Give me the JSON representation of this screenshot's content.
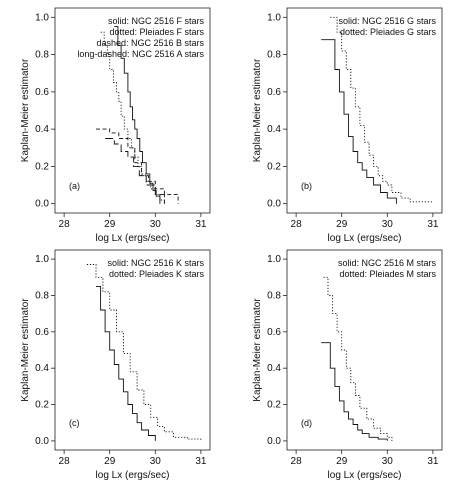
{
  "chart_data": [
    {
      "type": "line",
      "panel_label": "(a)",
      "xlabel": "log Lx (ergs/sec)",
      "ylabel": "Kaplan-Meier estimator",
      "xlim": [
        27.8,
        31.2
      ],
      "ylim": [
        -0.05,
        1.05
      ],
      "xticks": [
        "28",
        "29",
        "30",
        "31"
      ],
      "yticks": [
        "0.0",
        "0.2",
        "0.4",
        "0.6",
        "0.8",
        "1.0"
      ],
      "legend": [
        "solid: NGC 2516 F stars",
        "dotted: Pleiades F stars",
        "dashed: NGC 2516 B stars",
        "long-dashed: NGC 2516 A stars"
      ],
      "legend_position": "top-right",
      "grid": false,
      "series": [
        {
          "name": "NGC 2516 F stars",
          "style": "solid",
          "x": [
            29.1,
            29.18,
            29.25,
            29.32,
            29.4,
            29.45,
            29.5,
            29.55,
            29.6,
            29.66,
            29.72,
            29.8,
            29.88,
            29.95,
            30.02,
            30.1
          ],
          "y": [
            0.95,
            0.85,
            0.78,
            0.7,
            0.6,
            0.52,
            0.45,
            0.4,
            0.35,
            0.28,
            0.22,
            0.16,
            0.11,
            0.07,
            0.04,
            0.0
          ]
        },
        {
          "name": "Pleiades F stars",
          "style": "dotted",
          "x": [
            28.8,
            28.88,
            28.95,
            29.0,
            29.08,
            29.15,
            29.2,
            29.25,
            29.32,
            29.4,
            29.48,
            29.55,
            29.62,
            29.7,
            29.8,
            29.9,
            30.0,
            30.1,
            30.2
          ],
          "y": [
            0.92,
            0.85,
            0.8,
            0.72,
            0.65,
            0.6,
            0.55,
            0.47,
            0.4,
            0.35,
            0.3,
            0.25,
            0.2,
            0.16,
            0.12,
            0.08,
            0.05,
            0.02,
            0.0
          ]
        },
        {
          "name": "NGC 2516 B stars",
          "style": "dashed",
          "x": [
            28.7,
            29.0,
            29.2,
            29.4,
            29.55,
            29.7,
            29.85,
            30.0,
            30.2,
            30.5
          ],
          "y": [
            0.4,
            0.38,
            0.35,
            0.3,
            0.22,
            0.15,
            0.12,
            0.08,
            0.05,
            0.0
          ]
        },
        {
          "name": "NGC 2516 A stars",
          "style": "long-dashed",
          "x": [
            28.9,
            29.1,
            29.25,
            29.4,
            29.52,
            29.65,
            29.8,
            30.0,
            30.2
          ],
          "y": [
            0.35,
            0.32,
            0.28,
            0.25,
            0.2,
            0.15,
            0.1,
            0.05,
            0.0
          ]
        }
      ]
    },
    {
      "type": "line",
      "panel_label": "(b)",
      "xlabel": "log Lx (ergs/sec)",
      "ylabel": "Kaplan-Meier estimator",
      "xlim": [
        27.8,
        31.2
      ],
      "ylim": [
        -0.05,
        1.05
      ],
      "xticks": [
        "28",
        "29",
        "30",
        "31"
      ],
      "yticks": [
        "0.0",
        "0.2",
        "0.4",
        "0.6",
        "0.8",
        "1.0"
      ],
      "legend": [
        "solid: NGC 2516 G stars",
        "dotted: Pleiades G stars"
      ],
      "legend_position": "top-right",
      "grid": false,
      "series": [
        {
          "name": "NGC 2516 G stars",
          "style": "solid",
          "x": [
            28.55,
            28.85,
            28.95,
            29.05,
            29.15,
            29.25,
            29.35,
            29.45,
            29.55,
            29.7,
            29.85,
            30.0,
            30.2
          ],
          "y": [
            0.88,
            0.72,
            0.6,
            0.48,
            0.36,
            0.28,
            0.22,
            0.18,
            0.14,
            0.1,
            0.06,
            0.03,
            0.0
          ]
        },
        {
          "name": "Pleiades G stars",
          "style": "dotted",
          "x": [
            28.75,
            28.9,
            29.0,
            29.1,
            29.2,
            29.3,
            29.4,
            29.5,
            29.6,
            29.7,
            29.8,
            29.9,
            30.0,
            30.1,
            30.3,
            30.5,
            31.0
          ],
          "y": [
            1.0,
            0.92,
            0.82,
            0.72,
            0.62,
            0.52,
            0.42,
            0.33,
            0.26,
            0.2,
            0.15,
            0.12,
            0.1,
            0.06,
            0.03,
            0.01,
            0.01
          ]
        }
      ]
    },
    {
      "type": "line",
      "panel_label": "(c)",
      "xlabel": "log Lx (ergs/sec)",
      "ylabel": "Kaplan-Meier estimator",
      "xlim": [
        27.8,
        31.2
      ],
      "ylim": [
        -0.05,
        1.05
      ],
      "xticks": [
        "28",
        "29",
        "30",
        "31"
      ],
      "yticks": [
        "0.0",
        "0.2",
        "0.4",
        "0.6",
        "0.8",
        "1.0"
      ],
      "legend": [
        "solid: NGC 2516 K stars",
        "dotted: Pleiades K stars"
      ],
      "legend_position": "top-right",
      "grid": false,
      "series": [
        {
          "name": "NGC 2516 K stars",
          "style": "solid",
          "x": [
            28.7,
            28.8,
            28.9,
            29.0,
            29.1,
            29.2,
            29.3,
            29.4,
            29.5,
            29.6,
            29.7,
            29.85,
            30.0
          ],
          "y": [
            0.85,
            0.72,
            0.6,
            0.5,
            0.42,
            0.34,
            0.27,
            0.2,
            0.15,
            0.1,
            0.06,
            0.03,
            0.0
          ]
        },
        {
          "name": "Pleiades K stars",
          "style": "dotted",
          "x": [
            28.5,
            28.7,
            28.85,
            29.0,
            29.15,
            29.3,
            29.45,
            29.6,
            29.75,
            29.9,
            30.05,
            30.2,
            30.4,
            30.7,
            31.0
          ],
          "y": [
            0.97,
            0.9,
            0.82,
            0.72,
            0.6,
            0.48,
            0.38,
            0.28,
            0.2,
            0.13,
            0.08,
            0.05,
            0.02,
            0.01,
            0.0
          ]
        }
      ]
    },
    {
      "type": "line",
      "panel_label": "(d)",
      "xlabel": "log Lx (ergs/sec)",
      "ylabel": "Kaplan-Meier estimator",
      "xlim": [
        27.8,
        31.2
      ],
      "ylim": [
        -0.05,
        1.05
      ],
      "xticks": [
        "28",
        "29",
        "30",
        "31"
      ],
      "yticks": [
        "0.0",
        "0.2",
        "0.4",
        "0.6",
        "0.8",
        "1.0"
      ],
      "legend": [
        "solid: NGC 2516 M stars",
        "dotted: Pleiades M stars"
      ],
      "legend_position": "top-right",
      "grid": false,
      "series": [
        {
          "name": "NGC 2516 M stars",
          "style": "solid",
          "x": [
            28.55,
            28.75,
            28.85,
            28.95,
            29.05,
            29.15,
            29.25,
            29.35,
            29.45,
            29.6,
            29.8,
            30.0
          ],
          "y": [
            0.54,
            0.4,
            0.3,
            0.22,
            0.16,
            0.12,
            0.09,
            0.06,
            0.04,
            0.02,
            0.01,
            0.0
          ]
        },
        {
          "name": "Pleiades M stars",
          "style": "dotted",
          "x": [
            28.6,
            28.7,
            28.8,
            28.9,
            29.0,
            29.1,
            29.2,
            29.3,
            29.4,
            29.55,
            29.7,
            29.85,
            30.0,
            30.1
          ],
          "y": [
            0.9,
            0.8,
            0.7,
            0.6,
            0.5,
            0.4,
            0.32,
            0.25,
            0.18,
            0.12,
            0.07,
            0.04,
            0.02,
            0.0
          ]
        }
      ]
    }
  ]
}
